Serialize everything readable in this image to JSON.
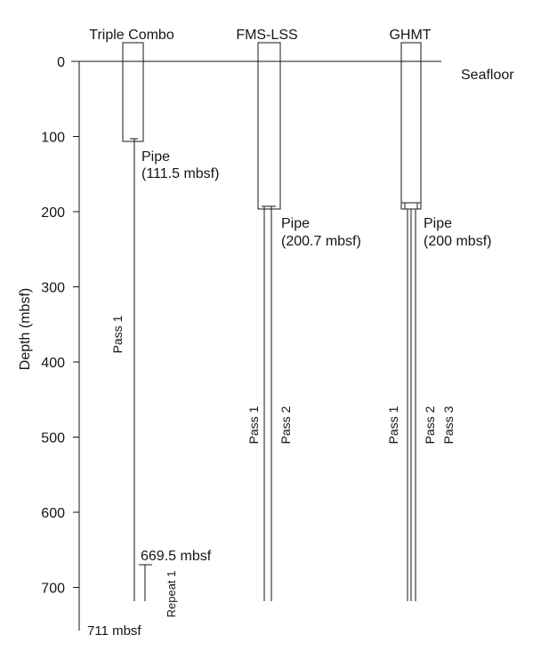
{
  "columns": {
    "triple_combo": "Triple Combo",
    "fms_lss": "FMS-LSS",
    "ghmt": "GHMT"
  },
  "seafloor_label": "Seafloor",
  "axis": {
    "label": "Depth (mbsf)",
    "ticks": [
      "0",
      "100",
      "200",
      "300",
      "400",
      "500",
      "600",
      "700"
    ],
    "tick_values": [
      0,
      100,
      200,
      300,
      400,
      500,
      600,
      700
    ],
    "total_depth_label": "711 mbsf",
    "total_depth": 711
  },
  "triple_combo": {
    "pipe_label": "Pipe",
    "pipe_depth_label": "(111.5 mbsf)",
    "pipe_depth": 111.5,
    "pass_labels": [
      "Pass 1"
    ],
    "repeat_label": "Repeat 1",
    "repeat_top_label": "669.5 mbsf",
    "repeat_top": 669.5
  },
  "fms_lss": {
    "pipe_label": "Pipe",
    "pipe_depth_label": "(200.7 mbsf)",
    "pipe_depth": 200.7,
    "pass_labels": [
      "Pass 1",
      "Pass 2"
    ]
  },
  "ghmt": {
    "pipe_label": "Pipe",
    "pipe_depth_label": "(200 mbsf)",
    "pipe_depth": 200,
    "pass_labels": [
      "Pass 1",
      "Pass 2",
      "Pass 3"
    ]
  }
}
